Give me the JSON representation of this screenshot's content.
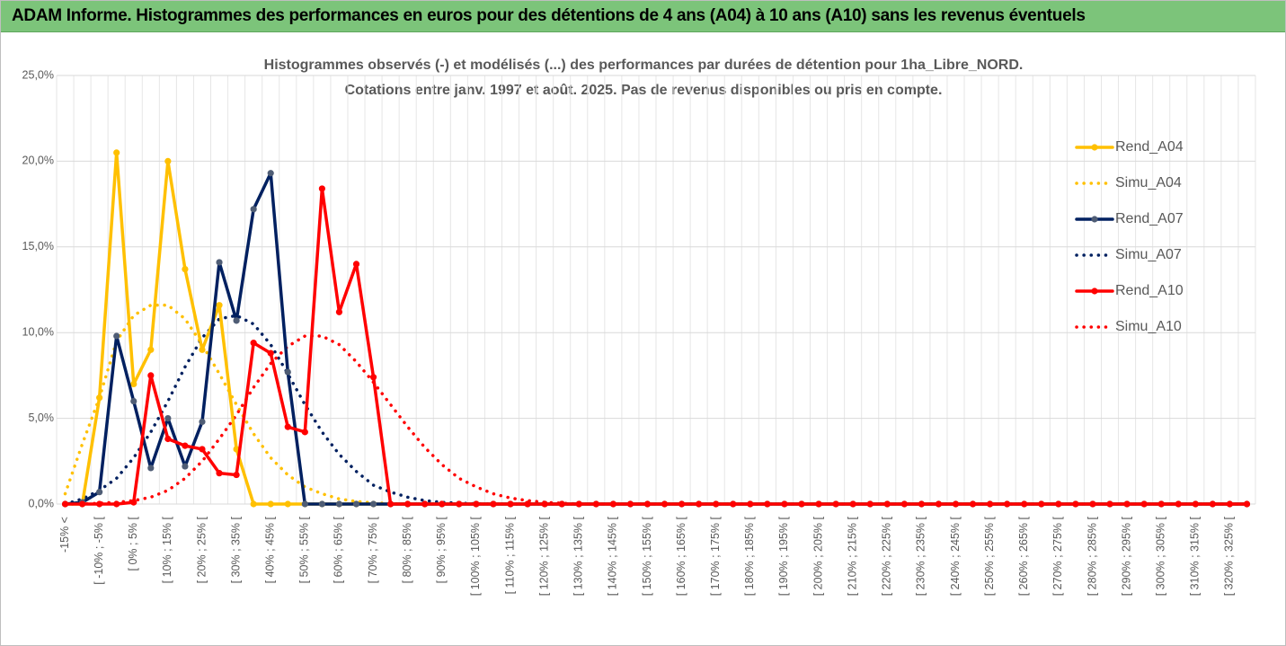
{
  "header": {
    "title": "ADAM Informe. Histogrammes des performances en euros pour des détentions de 4 ans (A04) à 10 ans (A10) sans les revenus éventuels"
  },
  "chart_data": {
    "type": "line",
    "subtitle": [
      "Histogrammes observés (-) et modélisés (...) des performances par durées de détention pour 1ha_Libre_NORD.",
      "Cotations entre janv. 1997 et août. 2025. Pas de revenus disponibles ou pris en compte."
    ],
    "categories": [
      "-15% <",
      null,
      "[ -10% ; -5% [",
      null,
      "[ 0% ; 5% [",
      null,
      "[ 10% ; 15% [",
      null,
      "[ 20% ; 25% [",
      null,
      "[ 30% ; 35% [",
      null,
      "[ 40% ; 45% [",
      null,
      "[ 50% ; 55% [",
      null,
      "[ 60% ; 65% [",
      null,
      "[ 70% ; 75% [",
      null,
      "[ 80% ; 85% [",
      null,
      "[ 90% ; 95% [",
      null,
      "[ 100% ; 105% [",
      null,
      "[ 110% ; 115% [",
      null,
      "[ 120% ; 125% [",
      null,
      "[ 130% ; 135% [",
      null,
      "[ 140% ; 145% [",
      null,
      "[ 150% ; 155% [",
      null,
      "[ 160% ; 165% [",
      null,
      "[ 170% ; 175% [",
      null,
      "[ 180% ; 185% [",
      null,
      "[ 190% ; 195% [",
      null,
      "[ 200% ; 205% [",
      null,
      "[ 210% ; 215% [",
      null,
      "[ 220% ; 225% [",
      null,
      "[ 230% ; 235% [",
      null,
      "[ 240% ; 245% [",
      null,
      "[ 250% ; 255% [",
      null,
      "[ 260% ; 265% [",
      null,
      "[ 270% ; 275% [",
      null,
      "[ 280% ; 285% [",
      null,
      "[ 290% ; 295% [",
      null,
      "[ 300% ; 305% [",
      null,
      "[ 310% ; 315% [",
      null,
      "[ 320% ; 325% [",
      null
    ],
    "series": [
      {
        "name": "Rend_A04",
        "color": "#ffc000",
        "dash": "solid",
        "marker": true,
        "marker_color": "#ffc000",
        "values": [
          0,
          0,
          6.2,
          20.5,
          7.0,
          9.0,
          20.0,
          13.7,
          9.0,
          11.6,
          3.2,
          0,
          0,
          0,
          0,
          0,
          0,
          0,
          0,
          0,
          0,
          0,
          0,
          0,
          0,
          0,
          0,
          0,
          0,
          0,
          0,
          0,
          0,
          0,
          0,
          0,
          0,
          0,
          0,
          0,
          0,
          0,
          0,
          0,
          0,
          0,
          0,
          0,
          0,
          0,
          0,
          0,
          0,
          0,
          0,
          0,
          0,
          0,
          0,
          0,
          0,
          0,
          0,
          0,
          0,
          0,
          0,
          0,
          0,
          0
        ]
      },
      {
        "name": "Simu_A04",
        "color": "#ffc000",
        "dash": "dotted",
        "marker": false,
        "values": [
          0.6,
          3.5,
          6.2,
          9.5,
          11.0,
          11.6,
          11.6,
          10.8,
          9.3,
          7.6,
          5.8,
          4.1,
          2.7,
          1.7,
          1.0,
          0.6,
          0.3,
          0.15,
          0.07,
          0.03,
          0,
          0,
          0,
          0,
          0,
          0,
          0,
          0,
          0,
          0,
          0,
          0,
          0,
          0,
          0,
          0,
          0,
          0,
          0,
          0,
          0,
          0,
          0,
          0,
          0,
          0,
          0,
          0,
          0,
          0,
          0,
          0,
          0,
          0,
          0,
          0,
          0,
          0,
          0,
          0,
          0,
          0,
          0,
          0,
          0,
          0,
          0,
          0,
          0,
          0
        ]
      },
      {
        "name": "Rend_A07",
        "color": "#002060",
        "dash": "solid",
        "marker": true,
        "marker_color": "#4f5d75",
        "values": [
          0,
          0.1,
          0.7,
          9.8,
          6.0,
          2.1,
          5.0,
          2.2,
          4.8,
          14.1,
          10.7,
          17.2,
          19.3,
          7.7,
          0,
          0,
          0,
          0,
          0,
          0,
          0,
          0,
          0,
          0,
          0,
          0,
          0,
          0,
          0,
          0,
          0,
          0,
          0,
          0,
          0,
          0,
          0,
          0,
          0,
          0,
          0,
          0,
          0,
          0,
          0,
          0,
          0,
          0,
          0,
          0,
          0,
          0,
          0,
          0,
          0,
          0,
          0,
          0,
          0,
          0,
          0,
          0,
          0,
          0,
          0,
          0,
          0,
          0,
          0,
          0
        ]
      },
      {
        "name": "Simu_A07",
        "color": "#002060",
        "dash": "dotted",
        "marker": false,
        "values": [
          0,
          0.3,
          0.8,
          1.5,
          2.7,
          4.2,
          6.0,
          8.0,
          9.7,
          10.8,
          11.0,
          10.5,
          9.3,
          7.6,
          5.8,
          4.2,
          2.9,
          1.9,
          1.1,
          0.7,
          0.4,
          0.2,
          0.1,
          0.05,
          0.02,
          0,
          0,
          0,
          0,
          0,
          0,
          0,
          0,
          0,
          0,
          0,
          0,
          0,
          0,
          0,
          0,
          0,
          0,
          0,
          0,
          0,
          0,
          0,
          0,
          0,
          0,
          0,
          0,
          0,
          0,
          0,
          0,
          0,
          0,
          0,
          0,
          0,
          0,
          0,
          0,
          0,
          0,
          0,
          0,
          0
        ]
      },
      {
        "name": "Rend_A10",
        "color": "#ff0000",
        "dash": "solid",
        "marker": true,
        "marker_color": "#ff0000",
        "values": [
          0,
          0,
          0,
          0,
          0.1,
          7.5,
          3.8,
          3.4,
          3.2,
          1.8,
          1.7,
          9.4,
          8.8,
          4.5,
          4.2,
          18.4,
          11.2,
          14.0,
          7.4,
          0,
          0,
          0,
          0,
          0,
          0,
          0,
          0,
          0,
          0,
          0,
          0,
          0,
          0,
          0,
          0,
          0,
          0,
          0,
          0,
          0,
          0,
          0,
          0,
          0,
          0,
          0,
          0,
          0,
          0,
          0,
          0,
          0,
          0,
          0,
          0,
          0,
          0,
          0,
          0,
          0,
          0,
          0,
          0,
          0,
          0,
          0,
          0,
          0,
          0,
          0
        ]
      },
      {
        "name": "Simu_A10",
        "color": "#ff0000",
        "dash": "dotted",
        "marker": false,
        "values": [
          0,
          0,
          0.05,
          0.1,
          0.2,
          0.4,
          0.8,
          1.5,
          2.5,
          3.8,
          5.2,
          6.8,
          8.2,
          9.2,
          9.8,
          9.8,
          9.3,
          8.3,
          7.1,
          5.8,
          4.5,
          3.3,
          2.3,
          1.5,
          1.0,
          0.6,
          0.35,
          0.2,
          0.1,
          0.05,
          0,
          0,
          0,
          0,
          0,
          0,
          0,
          0,
          0,
          0,
          0,
          0,
          0,
          0,
          0,
          0,
          0,
          0,
          0,
          0,
          0,
          0,
          0,
          0,
          0,
          0,
          0,
          0,
          0,
          0,
          0,
          0,
          0,
          0,
          0,
          0,
          0,
          0,
          0,
          0
        ]
      }
    ],
    "ylim": [
      0,
      25
    ],
    "yticks": [
      {
        "value": 0,
        "label": "0,0%"
      },
      {
        "value": 5,
        "label": "5,0%"
      },
      {
        "value": 10,
        "label": "10,0%"
      },
      {
        "value": 15,
        "label": "15,0%"
      },
      {
        "value": 20,
        "label": "20,0%"
      },
      {
        "value": 25,
        "label": "25,0%"
      }
    ],
    "grid": true,
    "legend": "right"
  }
}
